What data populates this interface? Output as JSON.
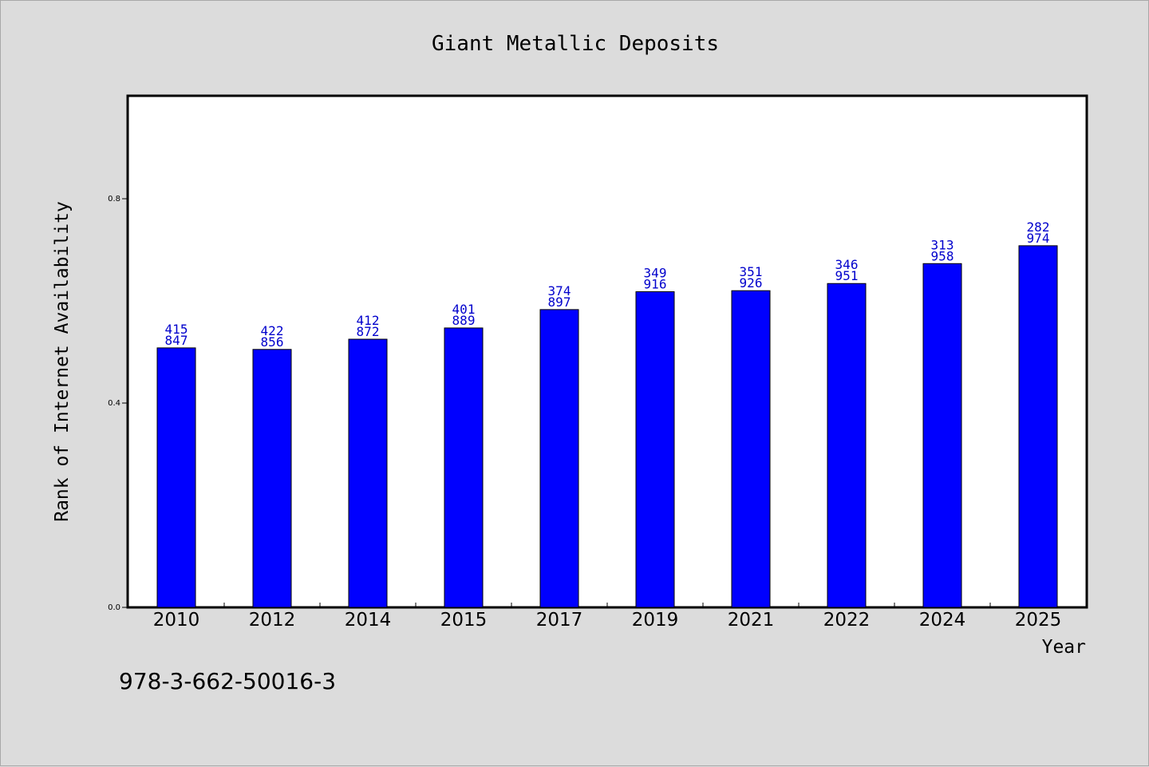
{
  "chart_data": {
    "type": "bar",
    "title": "Giant Metallic Deposits",
    "xlabel": "Year",
    "ylabel": "Rank of Internet Availability",
    "categories": [
      "2010",
      "2012",
      "2014",
      "2015",
      "2017",
      "2019",
      "2021",
      "2022",
      "2024",
      "2025"
    ],
    "values": [
      0.508,
      0.505,
      0.525,
      0.547,
      0.583,
      0.618,
      0.62,
      0.634,
      0.673,
      0.708
    ],
    "bar_labels": [
      [
        "415",
        "847"
      ],
      [
        "422",
        "856"
      ],
      [
        "412",
        "872"
      ],
      [
        "401",
        "889"
      ],
      [
        "374",
        "897"
      ],
      [
        "349",
        "916"
      ],
      [
        "351",
        "926"
      ],
      [
        "346",
        "951"
      ],
      [
        "313",
        "958"
      ],
      [
        "282",
        "974"
      ]
    ],
    "yticks": [
      "0.0",
      "0.4",
      "0.8"
    ],
    "ylim": [
      0,
      1.0
    ],
    "grid": false,
    "legend": "none",
    "colors": {
      "bar": "#0000ff",
      "bar_label": "#0000cc",
      "background": "#dcdcdc",
      "plot_bg": "#ffffff"
    }
  },
  "footer_code": "978-3-662-50016-3"
}
